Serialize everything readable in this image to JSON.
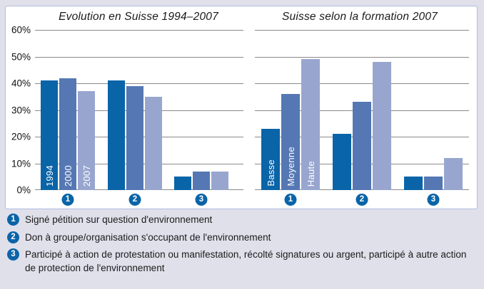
{
  "colors": {
    "background": "#E0E0EB",
    "panel_bg": "#FFFFFF",
    "panel_border": "#AEBCDC",
    "gridline": "#8A8A8A",
    "text": "#1A1A1A",
    "badge": "#0A64A8",
    "bar_label": "#FFFFFF",
    "series": [
      "#0A64A8",
      "#5578B4",
      "#98A6CF"
    ]
  },
  "chart_data": [
    {
      "type": "bar",
      "title": "Evolution en Suisse 1994–2007",
      "ylim": [
        0,
        60
      ],
      "yticks": [
        "60%",
        "50%",
        "40%",
        "30%",
        "20%",
        "10%",
        "0%"
      ],
      "grid": true,
      "legend_position": "bottom",
      "categories": [
        "1",
        "2",
        "3"
      ],
      "series": [
        {
          "name": "1994",
          "values": [
            41,
            41,
            5
          ]
        },
        {
          "name": "2000",
          "values": [
            42,
            39,
            7
          ]
        },
        {
          "name": "2007",
          "values": [
            37,
            35,
            7
          ]
        }
      ],
      "bar_labels_shown_on_group": "1"
    },
    {
      "type": "bar",
      "title": "Suisse selon la formation 2007",
      "ylim": [
        0,
        60
      ],
      "yticks": [
        "60%",
        "50%",
        "40%",
        "30%",
        "20%",
        "10%",
        "0%"
      ],
      "grid": true,
      "legend_position": "bottom",
      "categories": [
        "1",
        "2",
        "3"
      ],
      "series": [
        {
          "name": "Basse",
          "values": [
            23,
            21,
            5
          ]
        },
        {
          "name": "Moyenne",
          "values": [
            36,
            33,
            5
          ]
        },
        {
          "name": "Haute",
          "values": [
            49,
            48,
            12
          ]
        }
      ],
      "bar_labels_shown_on_group": "1"
    }
  ],
  "legend": {
    "items": [
      {
        "marker": "1",
        "text": "Signé pétition sur question d'environnement"
      },
      {
        "marker": "2",
        "text": "Don à groupe/organisation s'occupant de l'environnement"
      },
      {
        "marker": "3",
        "text": "Participé à action de protestation ou manifestation, récolté signatures ou argent, participé à autre action de protection de l'environnement"
      }
    ]
  }
}
